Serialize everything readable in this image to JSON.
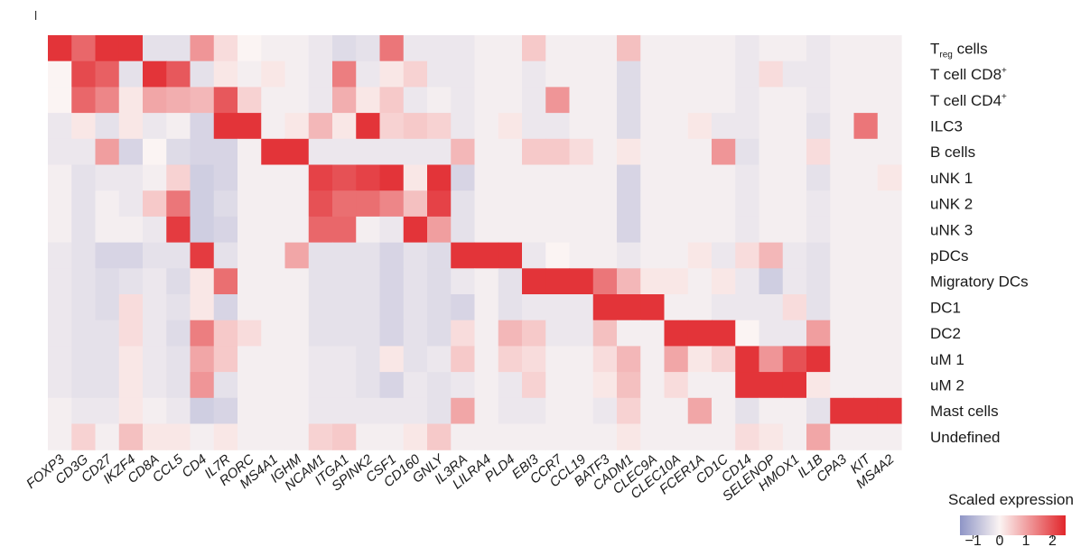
{
  "panel_label": "l",
  "chart_data": {
    "type": "heatmap",
    "columns": [
      "FOXP3",
      "CD3G",
      "CD27",
      "IKZF4",
      "CD8A",
      "CCL5",
      "CD4",
      "IL7R",
      "RORC",
      "MS4A1",
      "IGHM",
      "NCAM1",
      "ITGA1",
      "SPINK2",
      "CSF1",
      "CD160",
      "GNLY",
      "IL3RA",
      "LILRA4",
      "PLD4",
      "EBI3",
      "CCR7",
      "CCL19",
      "BATF3",
      "CADM1",
      "CLEC9A",
      "CLEC10A",
      "FCER1A",
      "CD1C",
      "CD14",
      "SELENOP",
      "HMOX1",
      "IL1B",
      "CPA3",
      "KIT",
      "MS4A2"
    ],
    "rows": [
      {
        "label": "T",
        "sub": "reg",
        "suffix": " cells",
        "values": [
          2.3,
          1.6,
          2.3,
          2.3,
          -0.3,
          -0.3,
          1.0,
          0.2,
          0.0,
          -0.1,
          -0.1,
          -0.2,
          -0.4,
          -0.3,
          1.4,
          -0.2,
          -0.2,
          -0.2,
          -0.1,
          -0.1,
          0.4,
          -0.1,
          -0.1,
          -0.1,
          0.5,
          -0.1,
          -0.1,
          -0.1,
          -0.1,
          -0.2,
          -0.1,
          -0.1,
          -0.2,
          -0.1,
          -0.1,
          -0.1
        ]
      },
      {
        "label": "T cell CD8",
        "sup": "+",
        "values": [
          0.0,
          2.0,
          1.7,
          -0.3,
          2.3,
          1.8,
          -0.3,
          0.1,
          -0.1,
          0.1,
          -0.1,
          -0.2,
          1.3,
          -0.2,
          0.1,
          0.3,
          -0.2,
          -0.2,
          -0.1,
          -0.1,
          -0.2,
          -0.1,
          -0.1,
          -0.1,
          -0.4,
          -0.1,
          -0.1,
          -0.1,
          -0.1,
          -0.2,
          0.2,
          -0.2,
          -0.2,
          -0.1,
          -0.1,
          -0.1
        ]
      },
      {
        "label": "T cell CD4",
        "sup": "+",
        "values": [
          0.0,
          1.6,
          1.2,
          0.1,
          0.8,
          0.7,
          0.6,
          1.8,
          0.3,
          -0.1,
          -0.1,
          -0.2,
          0.7,
          0.1,
          0.4,
          -0.2,
          -0.1,
          -0.2,
          -0.1,
          -0.1,
          -0.2,
          1.0,
          -0.1,
          -0.1,
          -0.4,
          -0.1,
          -0.1,
          -0.1,
          -0.1,
          -0.2,
          -0.1,
          -0.1,
          -0.2,
          -0.1,
          -0.1,
          -0.1
        ]
      },
      {
        "label": "ILC3",
        "values": [
          -0.2,
          0.1,
          -0.3,
          0.1,
          -0.2,
          -0.1,
          -0.5,
          2.3,
          2.3,
          -0.1,
          0.1,
          0.6,
          0.1,
          2.3,
          0.3,
          0.4,
          0.3,
          -0.2,
          -0.1,
          0.1,
          -0.2,
          -0.2,
          -0.1,
          -0.1,
          -0.4,
          -0.1,
          -0.1,
          0.1,
          -0.2,
          -0.2,
          -0.1,
          -0.1,
          -0.3,
          -0.1,
          1.4,
          -0.1
        ]
      },
      {
        "label": "B cells",
        "values": [
          -0.2,
          -0.2,
          0.9,
          -0.5,
          0.0,
          -0.4,
          -0.5,
          -0.5,
          -0.1,
          2.3,
          2.3,
          -0.2,
          -0.2,
          -0.2,
          -0.2,
          -0.2,
          -0.2,
          0.6,
          -0.1,
          -0.1,
          0.4,
          0.4,
          0.2,
          -0.1,
          0.1,
          -0.1,
          -0.1,
          -0.1,
          1.0,
          -0.3,
          -0.1,
          -0.1,
          0.2,
          -0.1,
          -0.1,
          -0.1
        ]
      },
      {
        "label": "uNK 1",
        "values": [
          -0.1,
          -0.3,
          -0.2,
          -0.2,
          -0.1,
          0.3,
          -0.6,
          -0.5,
          -0.1,
          -0.1,
          -0.1,
          2.1,
          1.9,
          2.1,
          2.3,
          0.1,
          2.3,
          -0.5,
          -0.1,
          -0.1,
          -0.1,
          -0.1,
          -0.1,
          -0.1,
          -0.5,
          -0.1,
          -0.1,
          -0.1,
          -0.1,
          -0.2,
          -0.1,
          -0.1,
          -0.3,
          -0.1,
          -0.1,
          0.1
        ]
      },
      {
        "label": "uNK 2",
        "values": [
          -0.1,
          -0.3,
          -0.1,
          -0.2,
          0.4,
          1.4,
          -0.6,
          -0.4,
          -0.1,
          -0.1,
          -0.1,
          1.9,
          1.5,
          1.5,
          1.2,
          0.5,
          2.1,
          -0.3,
          -0.1,
          -0.1,
          -0.1,
          -0.1,
          -0.1,
          -0.1,
          -0.5,
          -0.1,
          -0.1,
          -0.1,
          -0.1,
          -0.2,
          -0.1,
          -0.1,
          -0.2,
          -0.1,
          -0.1,
          -0.1
        ]
      },
      {
        "label": "uNK 3",
        "values": [
          -0.1,
          -0.3,
          -0.1,
          -0.1,
          -0.2,
          2.2,
          -0.6,
          -0.5,
          -0.1,
          -0.1,
          -0.1,
          1.6,
          1.6,
          -0.1,
          -0.2,
          2.3,
          0.9,
          -0.3,
          -0.1,
          -0.1,
          -0.1,
          -0.1,
          -0.1,
          -0.1,
          -0.5,
          -0.1,
          -0.1,
          -0.1,
          -0.1,
          -0.2,
          -0.1,
          -0.1,
          -0.2,
          -0.1,
          -0.1,
          -0.1
        ]
      },
      {
        "label": "pDCs",
        "values": [
          -0.2,
          -0.3,
          -0.5,
          -0.5,
          -0.3,
          -0.3,
          2.2,
          -0.3,
          -0.1,
          -0.1,
          0.8,
          -0.3,
          -0.3,
          -0.3,
          -0.5,
          -0.3,
          -0.4,
          2.3,
          2.3,
          2.3,
          -0.2,
          0.0,
          -0.1,
          -0.1,
          -0.2,
          -0.1,
          -0.1,
          0.1,
          -0.2,
          0.2,
          0.6,
          -0.2,
          -0.3,
          -0.1,
          -0.1,
          -0.1
        ]
      },
      {
        "label": "Migratory DCs",
        "values": [
          -0.2,
          -0.3,
          -0.4,
          -0.3,
          -0.2,
          -0.4,
          0.1,
          1.5,
          -0.1,
          -0.1,
          -0.1,
          -0.3,
          -0.3,
          -0.3,
          -0.5,
          -0.3,
          -0.4,
          -0.2,
          -0.1,
          -0.3,
          2.3,
          2.3,
          2.3,
          1.4,
          0.6,
          0.1,
          0.1,
          -0.1,
          0.1,
          -0.2,
          -0.6,
          -0.2,
          -0.3,
          -0.1,
          -0.1,
          -0.1
        ]
      },
      {
        "label": "DC1",
        "values": [
          -0.2,
          -0.3,
          -0.4,
          0.2,
          -0.2,
          -0.3,
          0.1,
          -0.5,
          -0.1,
          -0.1,
          -0.1,
          -0.3,
          -0.3,
          -0.3,
          -0.5,
          -0.3,
          -0.4,
          -0.5,
          -0.1,
          -0.3,
          -0.2,
          -0.2,
          -0.2,
          2.3,
          2.3,
          2.3,
          -0.1,
          -0.1,
          -0.2,
          -0.2,
          -0.2,
          0.2,
          -0.3,
          -0.1,
          -0.1,
          -0.1
        ]
      },
      {
        "label": "DC2",
        "values": [
          -0.2,
          -0.3,
          -0.3,
          0.2,
          -0.2,
          -0.4,
          1.3,
          0.4,
          0.2,
          -0.1,
          -0.1,
          -0.3,
          -0.3,
          -0.3,
          -0.5,
          -0.3,
          -0.4,
          0.2,
          -0.1,
          0.6,
          0.4,
          -0.2,
          -0.2,
          0.5,
          -0.1,
          -0.1,
          2.3,
          2.3,
          2.3,
          0.0,
          -0.2,
          -0.2,
          0.9,
          -0.1,
          -0.1,
          -0.1
        ]
      },
      {
        "label": "uM 1",
        "values": [
          -0.2,
          -0.3,
          -0.3,
          0.1,
          -0.2,
          -0.3,
          0.8,
          0.4,
          -0.1,
          -0.1,
          -0.1,
          -0.2,
          -0.2,
          -0.3,
          0.1,
          -0.3,
          -0.2,
          0.4,
          -0.1,
          0.3,
          0.2,
          -0.1,
          -0.1,
          0.2,
          0.6,
          -0.1,
          0.8,
          0.1,
          0.3,
          2.3,
          1.0,
          1.9,
          2.3,
          -0.1,
          -0.1,
          -0.1
        ]
      },
      {
        "label": "uM 2",
        "values": [
          -0.2,
          -0.3,
          -0.3,
          0.1,
          -0.2,
          -0.3,
          1.0,
          -0.3,
          -0.1,
          -0.1,
          -0.1,
          -0.2,
          -0.2,
          -0.3,
          -0.5,
          -0.2,
          -0.3,
          -0.2,
          -0.1,
          -0.2,
          0.3,
          -0.1,
          -0.1,
          0.1,
          0.5,
          -0.1,
          0.2,
          -0.1,
          -0.1,
          2.3,
          2.3,
          2.3,
          0.1,
          -0.1,
          -0.1,
          -0.1
        ]
      },
      {
        "label": "Mast cells",
        "values": [
          -0.1,
          -0.2,
          -0.2,
          0.1,
          -0.1,
          -0.2,
          -0.6,
          -0.5,
          -0.1,
          -0.1,
          -0.1,
          -0.2,
          -0.2,
          -0.2,
          -0.2,
          -0.2,
          -0.3,
          0.8,
          -0.1,
          -0.2,
          -0.2,
          -0.1,
          -0.1,
          -0.2,
          0.3,
          -0.1,
          -0.1,
          0.8,
          -0.1,
          -0.3,
          -0.1,
          -0.1,
          -0.3,
          2.3,
          2.3,
          2.3
        ]
      },
      {
        "label": "Undefined",
        "values": [
          -0.1,
          0.3,
          -0.1,
          0.5,
          0.1,
          0.1,
          -0.1,
          0.1,
          -0.1,
          -0.1,
          -0.1,
          0.3,
          0.4,
          -0.1,
          -0.1,
          0.1,
          0.4,
          -0.1,
          -0.1,
          -0.1,
          -0.1,
          -0.1,
          -0.1,
          -0.1,
          0.1,
          -0.1,
          -0.1,
          -0.1,
          -0.1,
          0.2,
          0.1,
          -0.1,
          0.8,
          -0.1,
          -0.1,
          -0.1
        ]
      }
    ],
    "colorbar": {
      "title": "Scaled expression",
      "ticks": [
        "−1",
        "0",
        "1",
        "2"
      ],
      "range": [
        -1.5,
        2.5
      ],
      "colors": {
        "low": "#8e95c6",
        "mid": "#fbf4f3",
        "high": "#e1262b"
      }
    }
  }
}
